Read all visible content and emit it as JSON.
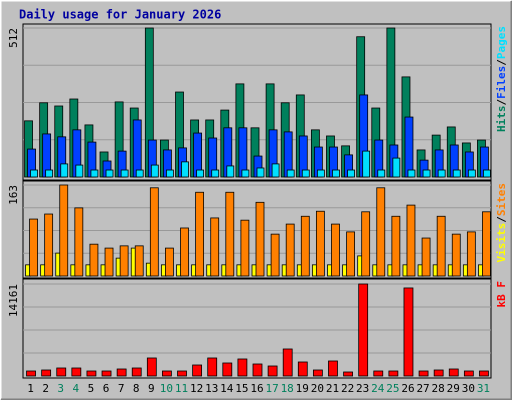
{
  "title": "Daily usage for January 2026",
  "legend_separator": "/",
  "chart_data": [
    {
      "type": "bar",
      "ylim": [
        0,
        512
      ],
      "yticks": [
        512
      ],
      "series": [
        {
          "name": "Hits",
          "color": "#00805c",
          "values": [
            193,
            255,
            244,
            268,
            179,
            86,
            258,
            237,
            512,
            127,
            292,
            196,
            196,
            230,
            320,
            169,
            320,
            255,
            282,
            162,
            141,
            107,
            482,
            237,
            512,
            344,
            93,
            144,
            172,
            117,
            127
          ]
        },
        {
          "name": "Files",
          "color": "#0040ff",
          "values": [
            96,
            148,
            138,
            162,
            120,
            55,
            89,
            196,
            127,
            93,
            100,
            151,
            134,
            169,
            169,
            72,
            162,
            155,
            141,
            103,
            103,
            76,
            282,
            127,
            110,
            206,
            58,
            93,
            110,
            86,
            103
          ]
        },
        {
          "name": "Pages",
          "color": "#00e0ff",
          "values": [
            24,
            24,
            45,
            41,
            24,
            24,
            24,
            24,
            41,
            24,
            52,
            24,
            24,
            38,
            24,
            31,
            45,
            24,
            24,
            24,
            24,
            24,
            89,
            24,
            65,
            24,
            24,
            24,
            24,
            24,
            24
          ]
        }
      ]
    },
    {
      "type": "bar",
      "ylim": [
        0,
        163
      ],
      "yticks": [
        163
      ],
      "series": [
        {
          "name": "Visits",
          "color": "#ffff00",
          "values": [
            20,
            20,
            41,
            20,
            20,
            20,
            32,
            50,
            23,
            20,
            20,
            20,
            20,
            20,
            20,
            20,
            20,
            20,
            20,
            20,
            20,
            20,
            36,
            20,
            20,
            20,
            20,
            20,
            20,
            20,
            20
          ]
        },
        {
          "name": "Sites",
          "color": "#ff8000",
          "values": [
            102,
            111,
            163,
            122,
            57,
            50,
            54,
            54,
            158,
            50,
            86,
            150,
            104,
            150,
            100,
            132,
            75,
            93,
            107,
            116,
            93,
            79,
            115,
            158,
            107,
            127,
            68,
            107,
            75,
            79,
            115
          ]
        }
      ]
    },
    {
      "type": "bar",
      "ylim": [
        0,
        14161
      ],
      "yticks": [
        14161
      ],
      "categories": [
        "1",
        "2",
        "3",
        "4",
        "5",
        "6",
        "7",
        "8",
        "9",
        "10",
        "11",
        "12",
        "13",
        "14",
        "15",
        "16",
        "17",
        "18",
        "19",
        "20",
        "21",
        "22",
        "23",
        "24",
        "25",
        "26",
        "27",
        "28",
        "29",
        "30",
        "31"
      ],
      "category_colors": [
        "#000000",
        "#000000",
        "#00805c",
        "#00805c",
        "#000000",
        "#000000",
        "#000000",
        "#000000",
        "#000000",
        "#00805c",
        "#00805c",
        "#000000",
        "#000000",
        "#000000",
        "#000000",
        "#000000",
        "#00805c",
        "#00805c",
        "#000000",
        "#000000",
        "#000000",
        "#000000",
        "#000000",
        "#00805c",
        "#00805c",
        "#000000",
        "#000000",
        "#000000",
        "#000000",
        "#000000",
        "#00805c"
      ],
      "series": [
        {
          "name": "kB F",
          "color": "#ff0000",
          "values": [
            770,
            924,
            1232,
            1232,
            770,
            770,
            1078,
            1232,
            2772,
            770,
            770,
            1694,
            2772,
            2002,
            2618,
            1848,
            1540,
            4158,
            2156,
            924,
            2310,
            616,
            14161,
            770,
            770,
            13552,
            770,
            924,
            1078,
            770,
            770
          ]
        }
      ]
    }
  ]
}
